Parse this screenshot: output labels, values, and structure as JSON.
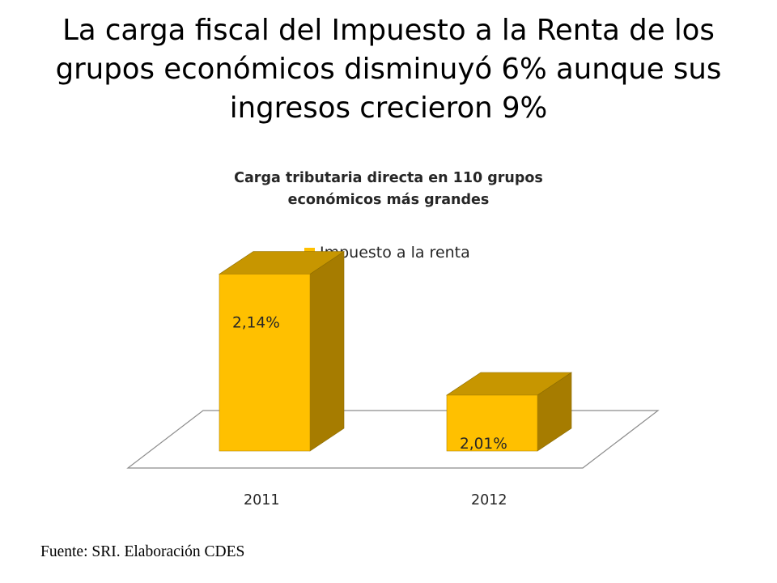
{
  "slide": {
    "title": "La carga fiscal del Impuesto a la Renta de los grupos económicos disminuyó 6% aunque sus ingresos crecieron 9%",
    "source": "Fuente: SRI. Elaboración CDES"
  },
  "chart_data": {
    "type": "bar",
    "style": "3d-column",
    "title": "Carga tributaria directa en 110 grupos económicos más grandes",
    "categories": [
      "2011",
      "2012"
    ],
    "series": [
      {
        "name": "Impuesto a la renta",
        "values": [
          2.14,
          2.01
        ],
        "data_labels": [
          "2,14%",
          "2,01%"
        ],
        "color": "#FFC000",
        "side_color": "#A67C00",
        "top_color": "#C79600"
      }
    ],
    "ylim": [
      1.95,
      2.16
    ],
    "grid": false,
    "legend_position": "top",
    "floor_color": "#ffffff",
    "floor_stroke": "#8c8c8c"
  }
}
